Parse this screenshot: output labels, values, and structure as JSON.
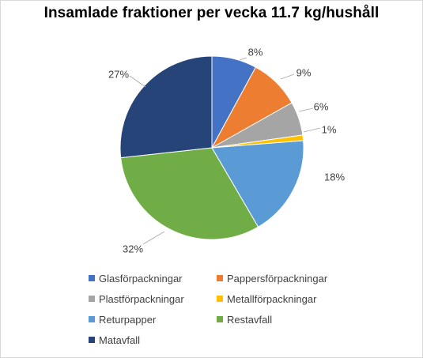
{
  "chart_data": {
    "type": "pie",
    "title": "Insamlade  fraktioner  per vecka 11.7 kg/hushåll",
    "slices": [
      {
        "name": "Glasförpackningar",
        "value": 8,
        "label": "8%",
        "color": "#4472c4"
      },
      {
        "name": "Pappersförpackningar",
        "value": 9,
        "label": "9%",
        "color": "#ed7d31"
      },
      {
        "name": "Plastförpackningar",
        "value": 6,
        "label": "6%",
        "color": "#a5a5a5"
      },
      {
        "name": "Metallförpackningar",
        "value": 1,
        "label": "1%",
        "color": "#ffc000"
      },
      {
        "name": "Returpapper",
        "value": 18,
        "label": "18%",
        "color": "#5b9bd5"
      },
      {
        "name": "Restavfall",
        "value": 32,
        "label": "32%",
        "color": "#70ad47"
      },
      {
        "name": "Matavfall",
        "value": 27,
        "label": "27%",
        "color": "#264478"
      }
    ],
    "legend_position": "bottom",
    "start_angle": "12 o'clock",
    "direction": "clockwise"
  }
}
